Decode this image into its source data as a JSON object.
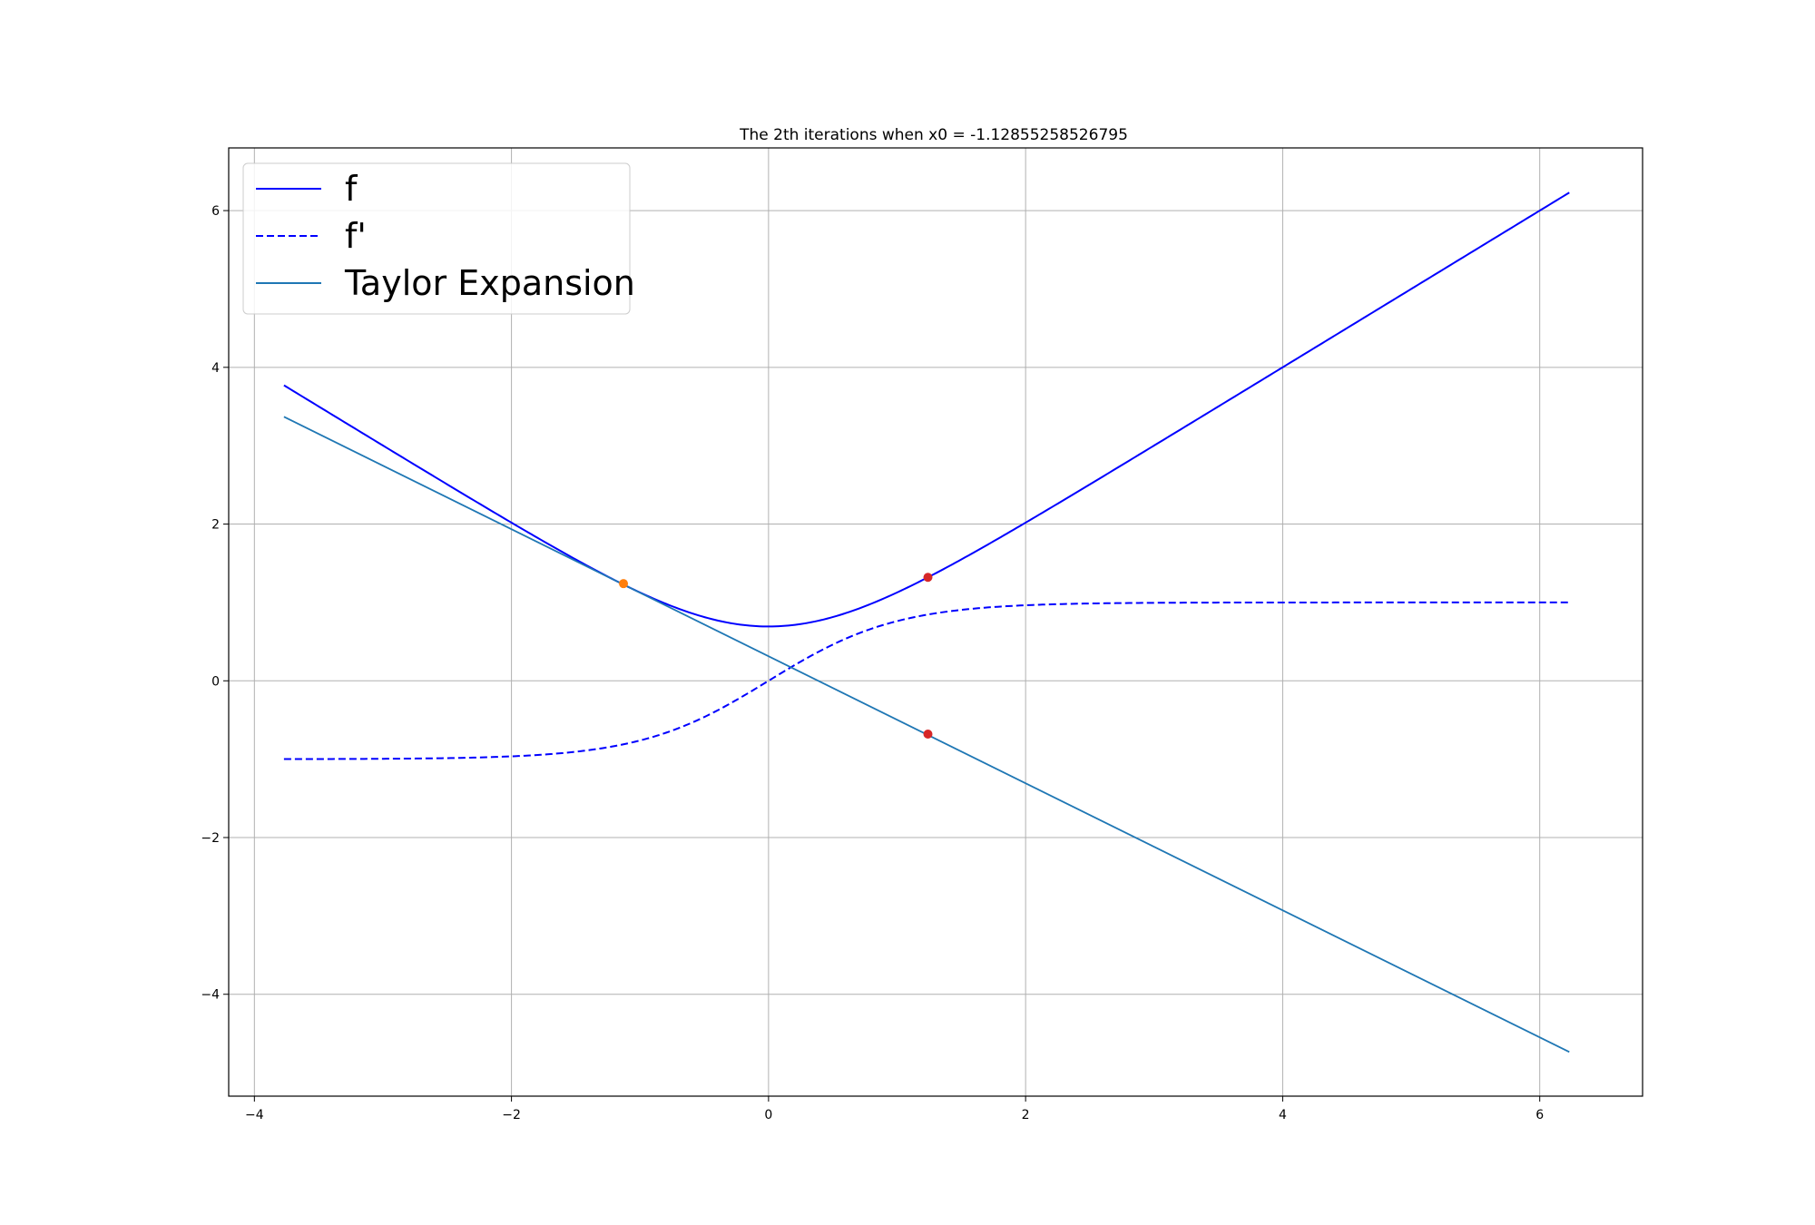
{
  "chart_data": {
    "type": "line",
    "title": "The 2th iterations when x0 = -1.12855258526795",
    "xlabel": "",
    "ylabel": "",
    "xlim": [
      -4.2,
      6.8
    ],
    "ylim": [
      -5.3,
      6.8
    ],
    "xticks": [
      -4,
      -2,
      0,
      2,
      4,
      6
    ],
    "yticks": [
      -4,
      -2,
      0,
      2,
      4,
      6
    ],
    "xtick_labels": [
      "−4",
      "−2",
      "0",
      "2",
      "4",
      "6"
    ],
    "ytick_labels": [
      "−4",
      "−2",
      "0",
      "2",
      "4",
      "6"
    ],
    "grid": true,
    "legend_position": "top-left",
    "x_range": [
      -3.77,
      6.23
    ],
    "series": [
      {
        "name": "f",
        "function": "ln(2cosh(x))",
        "color": "#0000ff",
        "style": "solid"
      },
      {
        "name": "f'",
        "function": "tanh(x)",
        "color": "#0000ff",
        "style": "dashed"
      },
      {
        "name": "Taylor Expansion",
        "function": "tangent of f at x0",
        "x0": -1.12855258526795,
        "color": "#1f77b4",
        "style": "solid"
      }
    ],
    "points": [
      {
        "x": -1.12855258526795,
        "y": 1.24,
        "color": "#ff7f0e"
      },
      {
        "x": 1.24,
        "y": 1.32,
        "color": "#d62728"
      },
      {
        "x": 1.24,
        "y": -0.68,
        "color": "#d62728"
      }
    ]
  }
}
